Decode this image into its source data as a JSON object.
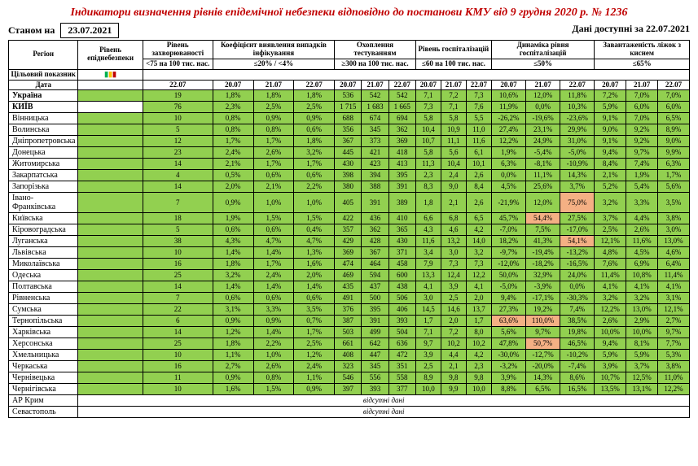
{
  "title": "Індикатори визначення рівнів епідемічної небезпеки відповідно до постанови КМУ від 9 грудня 2020 р. № 1236",
  "header": {
    "asof_label": "Станом на",
    "asof_date": "23.07.2021",
    "right_label": "Дані доступні за",
    "right_date": "22.07.2021"
  },
  "col_headers": {
    "region": "Регіон",
    "ep_level": "Рівень епіднебезпеки",
    "incidence": "Рівень захворюваності",
    "detection": "Коефіцієнт виявлення випадків інфікування",
    "testing": "Охоплення тестуванням",
    "hosp": "Рівень госпіталізацій",
    "hosp_dyn": "Динаміка рівня госпіталізацій",
    "beds": "Завантаженість ліжок з киснем",
    "target": "Цільовий показник",
    "date": "Дата",
    "t_incidence": "<75 на 100 тис. нас.",
    "t_detection": "≤20% / <4%",
    "t_testing": "≥300 на 100 тис. нас.",
    "t_hosp": "≤60 на 100 тис. нас.",
    "t_hosp_dyn": "≤50%",
    "t_beds": "≤65%"
  },
  "dates": {
    "incidence": [
      "22.07"
    ],
    "triple": [
      "20.07",
      "21.07",
      "22.07"
    ]
  },
  "rows": [
    {
      "region": "Україна",
      "ep": "",
      "bold": true,
      "inc": "19",
      "v": [
        "1,8%",
        "1,8%",
        "1,8%",
        "536",
        "542",
        "542",
        "7,1",
        "7,2",
        "7,3",
        "10,6%",
        "12,0%",
        "11,8%",
        "7,2%",
        "7,0%",
        "7,0%"
      ]
    },
    {
      "region": "КИЇВ",
      "ep": "",
      "bold": true,
      "epclass": "white",
      "inc": "76",
      "v": [
        "2,3%",
        "2,5%",
        "2,5%",
        "1 715",
        "1 683",
        "1 665",
        "7,3",
        "7,1",
        "7,6",
        "11,9%",
        "0,0%",
        "10,3%",
        "5,9%",
        "6,0%",
        "6,0%"
      ]
    },
    {
      "region": "Вінницька",
      "ep": "",
      "inc": "10",
      "v": [
        "0,8%",
        "0,9%",
        "0,9%",
        "688",
        "674",
        "694",
        "5,8",
        "5,8",
        "5,5",
        "-26,2%",
        "-19,6%",
        "-23,6%",
        "9,1%",
        "7,0%",
        "6,5%"
      ]
    },
    {
      "region": "Волинська",
      "ep": "",
      "inc": "5",
      "v": [
        "0,8%",
        "0,8%",
        "0,6%",
        "356",
        "345",
        "362",
        "10,4",
        "10,9",
        "11,0",
        "27,4%",
        "23,1%",
        "29,9%",
        "9,0%",
        "9,2%",
        "8,9%"
      ]
    },
    {
      "region": "Дніпропетровська",
      "ep": "",
      "inc": "12",
      "v": [
        "1,7%",
        "1,7%",
        "1,8%",
        "367",
        "373",
        "369",
        "10,7",
        "11,1",
        "11,6",
        "12,2%",
        "24,9%",
        "31,0%",
        "9,1%",
        "9,2%",
        "9,0%"
      ]
    },
    {
      "region": "Донецька",
      "ep": "",
      "inc": "23",
      "v": [
        "2,4%",
        "2,6%",
        "3,2%",
        "445",
        "421",
        "418",
        "5,8",
        "5,6",
        "6,1",
        "1,9%",
        "-5,4%",
        "-5,0%",
        "9,4%",
        "9,7%",
        "9,9%"
      ]
    },
    {
      "region": "Житомирська",
      "ep": "",
      "inc": "14",
      "v": [
        "2,1%",
        "1,7%",
        "1,7%",
        "430",
        "423",
        "413",
        "11,3",
        "10,4",
        "10,1",
        "6,3%",
        "-8,1%",
        "-10,9%",
        "8,4%",
        "7,4%",
        "6,3%"
      ]
    },
    {
      "region": "Закарпатська",
      "ep": "",
      "inc": "4",
      "v": [
        "0,5%",
        "0,6%",
        "0,6%",
        "398",
        "394",
        "395",
        "2,3",
        "2,4",
        "2,6",
        "0,0%",
        "11,1%",
        "14,3%",
        "2,1%",
        "1,9%",
        "1,7%"
      ]
    },
    {
      "region": "Запорізька",
      "ep": "",
      "inc": "14",
      "v": [
        "2,0%",
        "2,1%",
        "2,2%",
        "380",
        "388",
        "391",
        "8,3",
        "9,0",
        "8,4",
        "4,5%",
        "25,6%",
        "3,7%",
        "5,2%",
        "5,4%",
        "5,6%"
      ]
    },
    {
      "region": "Івано-Франківська",
      "ep": "",
      "inc": "7",
      "v": [
        "0,9%",
        "1,0%",
        "1,0%",
        "405",
        "391",
        "389",
        "1,8",
        "2,1",
        "2,6",
        "-21,9%",
        "12,0%",
        "75,0%",
        "3,2%",
        "3,3%",
        "3,5%"
      ],
      "hl": {
        "11": "pink"
      }
    },
    {
      "region": "Київська",
      "ep": "",
      "inc": "18",
      "v": [
        "1,9%",
        "1,5%",
        "1,5%",
        "422",
        "436",
        "410",
        "6,6",
        "6,8",
        "6,5",
        "45,7%",
        "54,4%",
        "27,5%",
        "3,7%",
        "4,4%",
        "3,8%"
      ],
      "hl": {
        "10": "pink"
      }
    },
    {
      "region": "Кіровоградська",
      "ep": "",
      "inc": "5",
      "v": [
        "0,6%",
        "0,6%",
        "0,4%",
        "357",
        "362",
        "365",
        "4,3",
        "4,6",
        "4,2",
        "-7,0%",
        "7,5%",
        "-17,0%",
        "2,5%",
        "2,6%",
        "3,0%"
      ]
    },
    {
      "region": "Луганська",
      "ep": "",
      "inc": "38",
      "v": [
        "4,3%",
        "4,7%",
        "4,7%",
        "429",
        "428",
        "430",
        "11,6",
        "13,2",
        "14,0",
        "18,2%",
        "41,3%",
        "54,1%",
        "12,1%",
        "11,6%",
        "13,0%"
      ],
      "hl": {
        "11": "pink"
      }
    },
    {
      "region": "Львівська",
      "ep": "",
      "inc": "10",
      "v": [
        "1,4%",
        "1,4%",
        "1,3%",
        "369",
        "367",
        "371",
        "3,4",
        "3,0",
        "3,2",
        "-9,7%",
        "-19,4%",
        "-13,2%",
        "4,8%",
        "4,5%",
        "4,6%"
      ]
    },
    {
      "region": "Миколаївська",
      "ep": "",
      "inc": "16",
      "v": [
        "1,8%",
        "1,7%",
        "1,6%",
        "474",
        "464",
        "458",
        "7,9",
        "7,3",
        "7,3",
        "-12,0%",
        "-18,2%",
        "-16,5%",
        "7,6%",
        "6,9%",
        "6,4%"
      ]
    },
    {
      "region": "Одеська",
      "ep": "",
      "inc": "25",
      "v": [
        "3,2%",
        "2,4%",
        "2,0%",
        "469",
        "594",
        "600",
        "13,3",
        "12,4",
        "12,2",
        "50,0%",
        "32,9%",
        "24,0%",
        "11,4%",
        "10,8%",
        "11,4%"
      ]
    },
    {
      "region": "Полтавська",
      "ep": "",
      "inc": "14",
      "v": [
        "1,4%",
        "1,4%",
        "1,4%",
        "435",
        "437",
        "438",
        "4,1",
        "3,9",
        "4,1",
        "-5,0%",
        "-3,9%",
        "0,0%",
        "4,1%",
        "4,1%",
        "4,1%"
      ]
    },
    {
      "region": "Рівненська",
      "ep": "",
      "inc": "7",
      "v": [
        "0,6%",
        "0,6%",
        "0,6%",
        "491",
        "500",
        "506",
        "3,0",
        "2,5",
        "2,0",
        "9,4%",
        "-17,1%",
        "-30,3%",
        "3,2%",
        "3,2%",
        "3,1%"
      ]
    },
    {
      "region": "Сумська",
      "ep": "",
      "inc": "22",
      "v": [
        "3,1%",
        "3,3%",
        "3,5%",
        "376",
        "395",
        "406",
        "14,5",
        "14,6",
        "13,7",
        "27,3%",
        "19,2%",
        "7,4%",
        "12,2%",
        "13,0%",
        "12,1%"
      ]
    },
    {
      "region": "Тернопільська",
      "ep": "",
      "inc": "6",
      "v": [
        "0,9%",
        "0,9%",
        "0,7%",
        "387",
        "391",
        "393",
        "1,7",
        "2,0",
        "1,7",
        "63,6%",
        "110,0%",
        "38,5%",
        "2,6%",
        "2,9%",
        "2,7%"
      ],
      "hl": {
        "9": "pink",
        "10": "pink"
      }
    },
    {
      "region": "Харківська",
      "ep": "",
      "inc": "14",
      "v": [
        "1,2%",
        "1,4%",
        "1,7%",
        "503",
        "499",
        "504",
        "7,1",
        "7,2",
        "8,0",
        "5,6%",
        "9,7%",
        "19,8%",
        "10,0%",
        "10,0%",
        "9,7%"
      ]
    },
    {
      "region": "Херсонська",
      "ep": "",
      "inc": "25",
      "v": [
        "1,8%",
        "2,2%",
        "2,5%",
        "661",
        "642",
        "636",
        "9,7",
        "10,2",
        "10,2",
        "47,8%",
        "50,7%",
        "46,5%",
        "9,4%",
        "8,1%",
        "7,7%"
      ],
      "hl": {
        "10": "pink"
      }
    },
    {
      "region": "Хмельницька",
      "ep": "",
      "inc": "10",
      "v": [
        "1,1%",
        "1,0%",
        "1,2%",
        "408",
        "447",
        "472",
        "3,9",
        "4,4",
        "4,2",
        "-30,0%",
        "-12,7%",
        "-10,2%",
        "5,9%",
        "5,9%",
        "5,3%"
      ]
    },
    {
      "region": "Черкаська",
      "ep": "",
      "inc": "16",
      "v": [
        "2,7%",
        "2,6%",
        "2,4%",
        "323",
        "345",
        "351",
        "2,5",
        "2,1",
        "2,3",
        "-3,2%",
        "-20,0%",
        "-7,4%",
        "3,9%",
        "3,7%",
        "3,8%"
      ]
    },
    {
      "region": "Чернівецька",
      "ep": "",
      "inc": "11",
      "v": [
        "0,9%",
        "0,8%",
        "1,1%",
        "546",
        "556",
        "558",
        "8,9",
        "9,8",
        "9,8",
        "3,9%",
        "14,3%",
        "8,6%",
        "10,7%",
        "12,5%",
        "11,0%"
      ]
    },
    {
      "region": "Чернігівська",
      "ep": "",
      "inc": "10",
      "v": [
        "1,6%",
        "1,5%",
        "0,9%",
        "397",
        "393",
        "377",
        "10,0",
        "9,9",
        "10,0",
        "8,8%",
        "6,5%",
        "16,5%",
        "13,5%",
        "13,1%",
        "12,2%"
      ]
    },
    {
      "region": "АР Крим",
      "absent": true,
      "text": "відсутні дані"
    },
    {
      "region": "Севастополь",
      "absent": true,
      "text": "відсутні дані"
    }
  ]
}
